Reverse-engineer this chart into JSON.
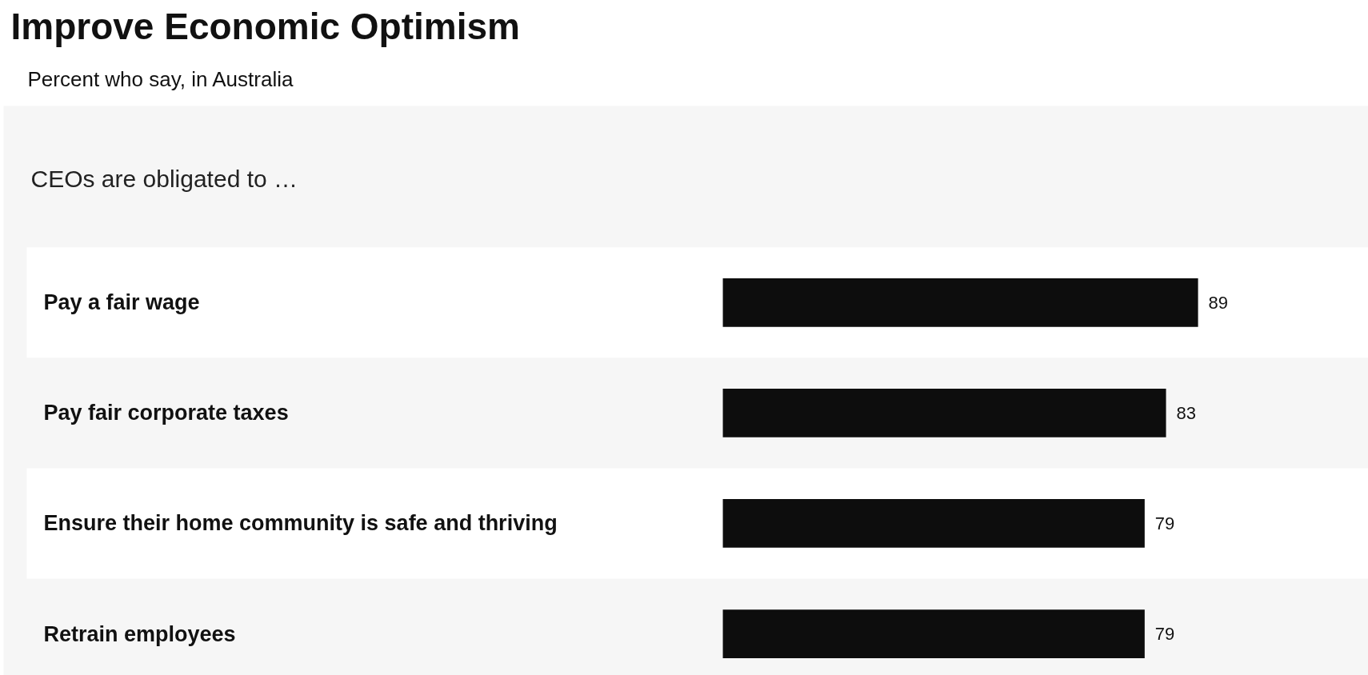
{
  "chart_data": {
    "type": "bar",
    "orientation": "horizontal",
    "title": "Improve Economic Optimism",
    "subtitle": "Percent who say, in Australia",
    "annotations": [
      "CEOs are obligated to …"
    ],
    "categories": [
      "Pay a fair wage",
      "Pay fair corporate taxes",
      "Ensure their home community is safe and thriving",
      "Retrain employees"
    ],
    "values": [
      89,
      83,
      79,
      79
    ],
    "color": "#0d0d0d",
    "data_labels": true
  }
}
